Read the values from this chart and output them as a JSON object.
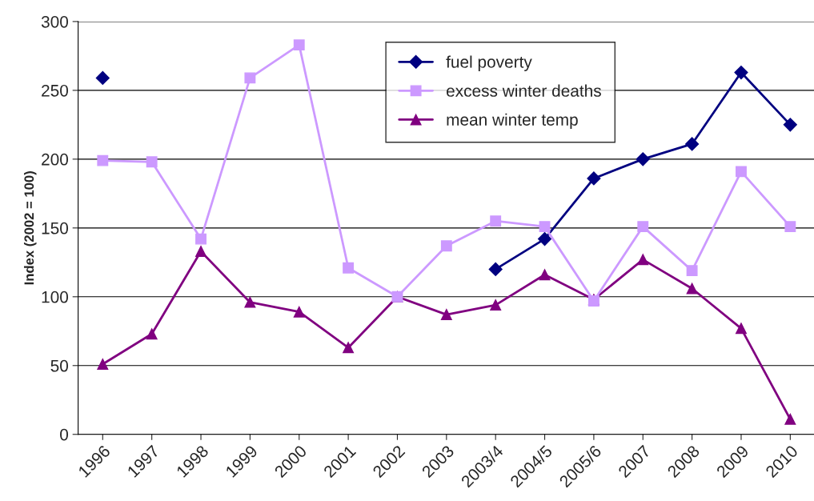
{
  "chart_data": {
    "type": "line",
    "ylabel": "Index (2002 = 100)",
    "categories": [
      "1996",
      "1997",
      "1998",
      "1999",
      "2000",
      "2001",
      "2002",
      "2003",
      "2003/4",
      "2004/5",
      "2005/6",
      "2007",
      "2008",
      "2009",
      "2010"
    ],
    "series": [
      {
        "name": "fuel poverty",
        "color": "#000080",
        "marker": "diamond",
        "values": [
          259,
          null,
          null,
          null,
          null,
          null,
          null,
          null,
          120,
          142,
          186,
          200,
          211,
          263,
          225
        ]
      },
      {
        "name": "excess winter deaths",
        "color": "#cc99ff",
        "marker": "square",
        "values": [
          199,
          198,
          142,
          259,
          283,
          121,
          100,
          137,
          155,
          151,
          97,
          151,
          119,
          191,
          151
        ]
      },
      {
        "name": "mean winter temp",
        "color": "#800080",
        "marker": "triangle",
        "values": [
          51,
          73,
          133,
          96,
          89,
          63,
          100,
          87,
          94,
          116,
          98,
          127,
          106,
          77,
          11
        ]
      }
    ],
    "ylim": [
      0,
      300
    ],
    "yticks": [
      0,
      50,
      100,
      150,
      200,
      250,
      300
    ],
    "grid": "y",
    "legend": "top right",
    "line_style": "solid"
  }
}
